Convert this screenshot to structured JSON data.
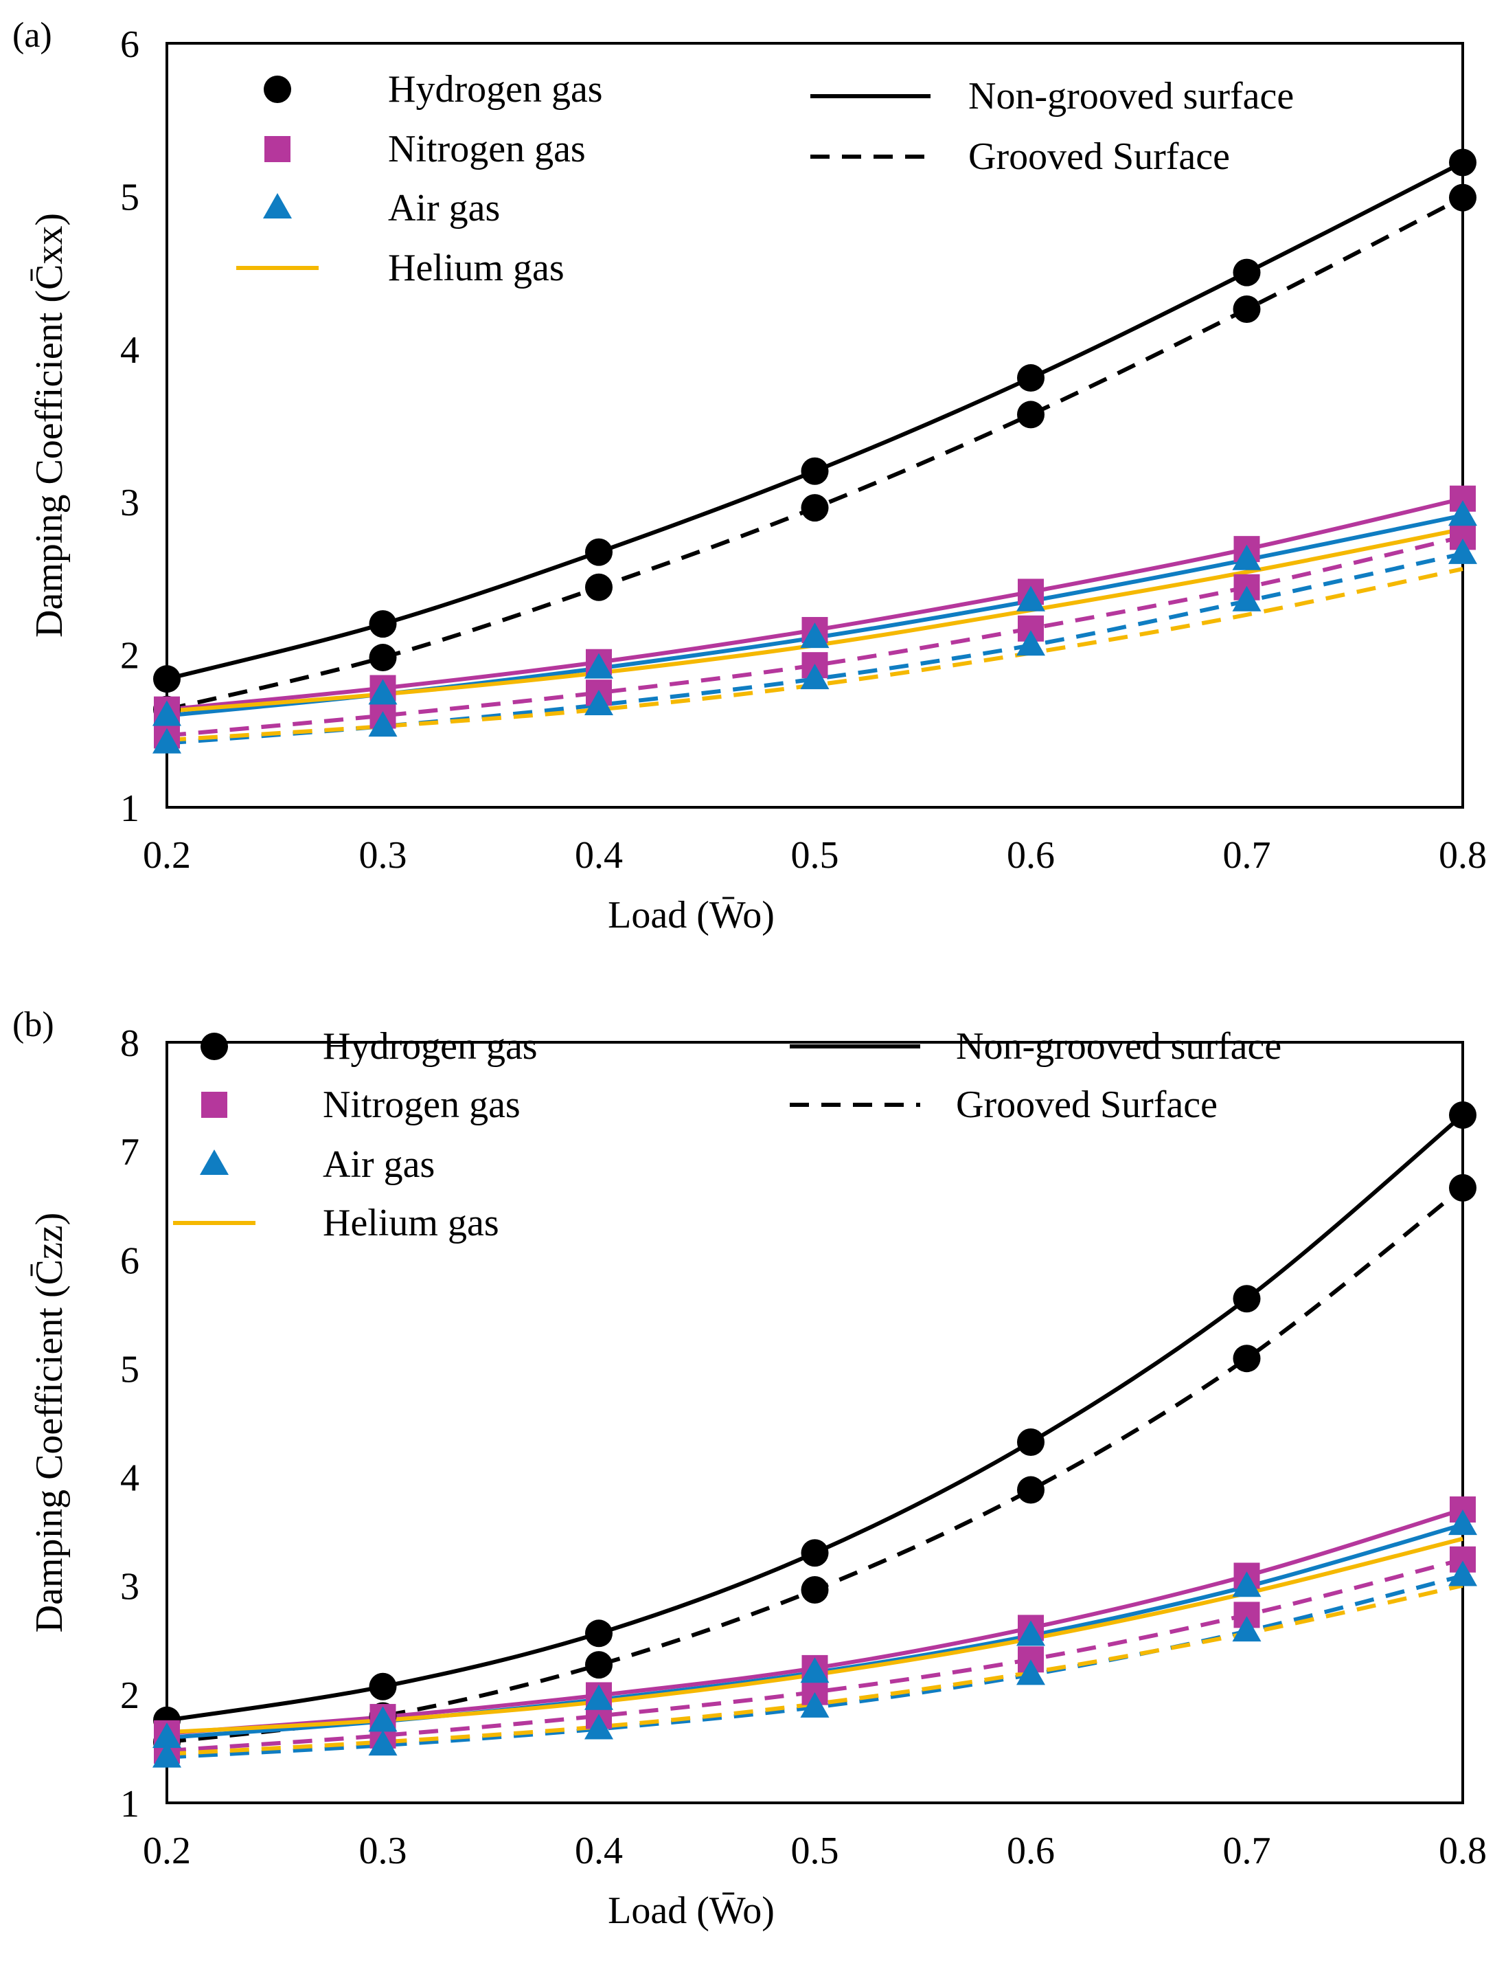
{
  "chart_data": [
    {
      "type": "line",
      "panel_label": "(a)",
      "title": "",
      "xlabel": "Load (W̄o)",
      "ylabel": "Damping Coefficient (C̄xx)",
      "x": [
        0.2,
        0.3,
        0.4,
        0.5,
        0.6,
        0.7,
        0.8
      ],
      "xticks": [
        "0.2",
        "0.3",
        "0.4",
        "0.5",
        "0.6",
        "0.7",
        "0.8"
      ],
      "yticks": [
        "1",
        "2",
        "3",
        "4",
        "5",
        "6"
      ],
      "xlim": [
        0.2,
        0.8
      ],
      "ylim": [
        1,
        6
      ],
      "grid": false,
      "legend_gas": [
        "Hydrogen gas",
        "Nitrogen gas",
        "Air gas",
        "Helium gas"
      ],
      "legend_surface": [
        "Non-grooved surface",
        "Grooved Surface"
      ],
      "series": [
        {
          "name": "Hydrogen gas",
          "surface": "Non-grooved surface",
          "marker": "circle",
          "color": "#000000",
          "values": [
            1.84,
            2.2,
            2.67,
            3.2,
            3.81,
            4.5,
            5.22
          ]
        },
        {
          "name": "Hydrogen gas",
          "surface": "Grooved Surface",
          "marker": "circle",
          "color": "#000000",
          "values": [
            1.64,
            1.98,
            2.44,
            2.96,
            3.57,
            4.26,
            4.99
          ]
        },
        {
          "name": "Nitrogen gas",
          "surface": "Non-grooved surface",
          "marker": "square",
          "color": "#b5379c",
          "values": [
            1.64,
            1.78,
            1.95,
            2.16,
            2.41,
            2.69,
            3.02
          ]
        },
        {
          "name": "Nitrogen gas",
          "surface": "Grooved Surface",
          "marker": "square",
          "color": "#b5379c",
          "values": [
            1.47,
            1.6,
            1.75,
            1.93,
            2.17,
            2.44,
            2.77
          ]
        },
        {
          "name": "Air gas",
          "surface": "Non-grooved surface",
          "marker": "triangle",
          "color": "#0f7dc2",
          "values": [
            1.6,
            1.74,
            1.91,
            2.11,
            2.35,
            2.62,
            2.91
          ]
        },
        {
          "name": "Air gas",
          "surface": "Grooved Surface",
          "marker": "triangle",
          "color": "#0f7dc2",
          "values": [
            1.42,
            1.53,
            1.67,
            1.84,
            2.06,
            2.35,
            2.66
          ]
        },
        {
          "name": "Helium gas",
          "surface": "Non-grooved surface",
          "marker": "none",
          "color": "#f5b800",
          "values": [
            1.63,
            1.74,
            1.88,
            2.06,
            2.29,
            2.54,
            2.82
          ]
        },
        {
          "name": "Helium gas",
          "surface": "Grooved Surface",
          "marker": "none",
          "color": "#f5b800",
          "values": [
            1.44,
            1.53,
            1.64,
            1.8,
            2.01,
            2.26,
            2.56
          ]
        }
      ]
    },
    {
      "type": "line",
      "panel_label": "(b)",
      "title": "",
      "xlabel": "Load (W̄o)",
      "ylabel": "Damping Coefficient (C̄zz)",
      "x": [
        0.2,
        0.3,
        0.4,
        0.5,
        0.6,
        0.7,
        0.8
      ],
      "xticks": [
        "0.2",
        "0.3",
        "0.4",
        "0.5",
        "0.6",
        "0.7",
        "0.8"
      ],
      "yticks": [
        "1",
        "2",
        "3",
        "4",
        "5",
        "6",
        "7",
        "8"
      ],
      "xlim": [
        0.2,
        0.8
      ],
      "ylim": [
        1,
        8
      ],
      "grid": false,
      "legend_gas": [
        "Hydrogen gas",
        "Nitrogen gas",
        "Air gas",
        "Helium gas"
      ],
      "legend_surface": [
        "Non-grooved surface",
        "Grooved Surface"
      ],
      "series": [
        {
          "name": "Hydrogen gas",
          "surface": "Non-grooved surface",
          "marker": "circle",
          "color": "#000000",
          "values": [
            1.76,
            2.07,
            2.56,
            3.3,
            4.32,
            5.64,
            7.33
          ]
        },
        {
          "name": "Hydrogen gas",
          "surface": "Grooved Surface",
          "marker": "circle",
          "color": "#000000",
          "values": [
            1.56,
            1.8,
            2.27,
            2.96,
            3.88,
            5.09,
            6.66
          ]
        },
        {
          "name": "Nitrogen gas",
          "surface": "Non-grooved surface",
          "marker": "square",
          "color": "#b5379c",
          "values": [
            1.64,
            1.79,
            1.99,
            2.24,
            2.61,
            3.09,
            3.7
          ]
        },
        {
          "name": "Nitrogen gas",
          "surface": "Grooved Surface",
          "marker": "square",
          "color": "#b5379c",
          "values": [
            1.48,
            1.62,
            1.8,
            2.02,
            2.32,
            2.73,
            3.24
          ]
        },
        {
          "name": "Air gas",
          "surface": "Non-grooved surface",
          "marker": "triangle",
          "color": "#0f7dc2",
          "values": [
            1.6,
            1.75,
            1.95,
            2.2,
            2.54,
            2.99,
            3.56
          ]
        },
        {
          "name": "Air gas",
          "surface": "Grooved Surface",
          "marker": "triangle",
          "color": "#0f7dc2",
          "values": [
            1.42,
            1.53,
            1.68,
            1.88,
            2.18,
            2.58,
            3.09
          ]
        },
        {
          "name": "Helium gas",
          "surface": "Non-grooved surface",
          "marker": "none",
          "color": "#f5b800",
          "values": [
            1.65,
            1.76,
            1.93,
            2.18,
            2.51,
            2.93,
            3.43
          ]
        },
        {
          "name": "Helium gas",
          "surface": "Grooved Surface",
          "marker": "none",
          "color": "#f5b800",
          "values": [
            1.45,
            1.56,
            1.7,
            1.91,
            2.2,
            2.56,
            3.0
          ]
        }
      ]
    }
  ]
}
